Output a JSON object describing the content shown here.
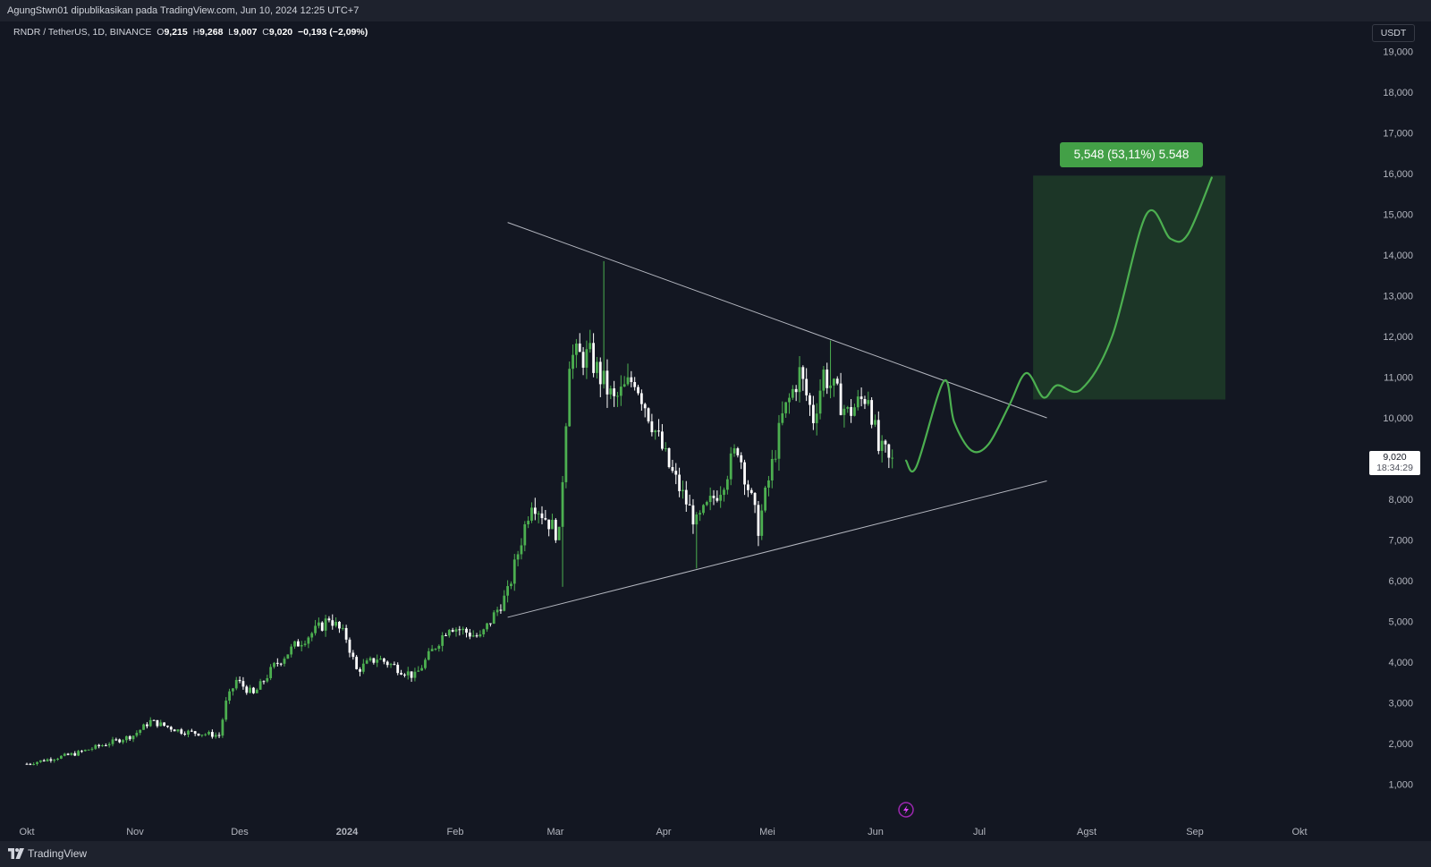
{
  "publication": "AgungStwn01 dipublikasikan pada TradingView.com, Jun 10, 2024 12:25 UTC+7",
  "legend": {
    "symbol": "RNDR / TetherUS, 1D, BINANCE",
    "o_label": "O",
    "o_value": "9,215",
    "h_label": "H",
    "h_value": "9,268",
    "l_label": "L",
    "l_value": "9,007",
    "c_label": "C",
    "c_value": "9,020",
    "change": "−0,193 (−2,09%)"
  },
  "currency": "USDT",
  "last_price": {
    "value": "9,020",
    "countdown": "18:34:29"
  },
  "measure": {
    "label": "5,548 (53,11%) 5.548"
  },
  "price_axis": [
    "19,000",
    "18,000",
    "17,000",
    "16,000",
    "15,000",
    "14,000",
    "13,000",
    "12,000",
    "11,000",
    "10,000",
    "8,000",
    "7,000",
    "6,000",
    "5,000",
    "4,000",
    "3,000",
    "2,000",
    "1,000"
  ],
  "time_axis": [
    {
      "label": "Okt",
      "bold": false
    },
    {
      "label": "Nov",
      "bold": false
    },
    {
      "label": "Des",
      "bold": false
    },
    {
      "label": "2024",
      "bold": true
    },
    {
      "label": "Feb",
      "bold": false
    },
    {
      "label": "Mar",
      "bold": false
    },
    {
      "label": "Apr",
      "bold": false
    },
    {
      "label": "Mei",
      "bold": false
    },
    {
      "label": "Jun",
      "bold": false
    },
    {
      "label": "Jul",
      "bold": false
    },
    {
      "label": "Agst",
      "bold": false
    },
    {
      "label": "Sep",
      "bold": false
    },
    {
      "label": "Okt",
      "bold": false
    }
  ],
  "brand": "TradingView",
  "icons": [
    "tradingview-logo-icon",
    "lightning-icon"
  ],
  "colors": {
    "background": "#131722",
    "up": "#4caf50",
    "down": "#ffffff",
    "projection": "#4caf50",
    "measure_fill": "#1e3a28",
    "trendline": "#d1d4dc"
  },
  "chart_data": {
    "type": "candlestick",
    "symbol": "RNDR / TetherUS",
    "interval": "1D",
    "exchange": "BINANCE",
    "ylim": [
      0,
      19500
    ],
    "y_ticks": [
      1000,
      2000,
      3000,
      4000,
      5000,
      6000,
      7000,
      8000,
      10000,
      11000,
      12000,
      13000,
      14000,
      15000,
      16000,
      17000,
      18000,
      19000
    ],
    "series": [
      {
        "name": "RNDR / TetherUS",
        "close_path": [
          [
            "2023-10-01",
            1.5
          ],
          [
            "2023-10-15",
            1.75
          ],
          [
            "2023-11-01",
            2.2
          ],
          [
            "2023-11-06",
            2.55
          ],
          [
            "2023-11-15",
            2.3
          ],
          [
            "2023-11-26",
            2.2
          ],
          [
            "2023-11-28",
            3.0
          ],
          [
            "2023-12-01",
            3.55
          ],
          [
            "2023-12-06",
            3.2
          ],
          [
            "2023-12-12",
            3.9
          ],
          [
            "2023-12-18",
            4.4
          ],
          [
            "2023-12-26",
            4.9
          ],
          [
            "2023-12-28",
            5.1
          ],
          [
            "2024-01-02",
            4.6
          ],
          [
            "2024-01-05",
            3.8
          ],
          [
            "2024-01-11",
            4.1
          ],
          [
            "2024-01-22",
            3.65
          ],
          [
            "2024-02-01",
            4.9
          ],
          [
            "2024-02-10",
            4.6
          ],
          [
            "2024-02-18",
            5.7
          ],
          [
            "2024-02-25",
            8.0
          ],
          [
            "2024-03-04",
            7.1
          ],
          [
            "2024-03-07",
            11.5
          ],
          [
            "2024-03-13",
            11.5
          ],
          [
            "2024-03-16",
            11.0
          ],
          [
            "2024-03-20",
            10.4
          ],
          [
            "2024-03-26",
            11.0
          ],
          [
            "2024-04-05",
            8.8
          ],
          [
            "2024-04-13",
            7.4
          ],
          [
            "2024-04-20",
            8.3
          ],
          [
            "2024-04-25",
            9.3
          ],
          [
            "2024-05-01",
            7.3
          ],
          [
            "2024-05-08",
            10.0
          ],
          [
            "2024-05-13",
            11.1
          ],
          [
            "2024-05-17",
            10.0
          ],
          [
            "2024-05-20",
            11.1
          ],
          [
            "2024-05-27",
            10.1
          ],
          [
            "2024-06-02",
            10.6
          ],
          [
            "2024-06-05",
            9.2
          ],
          [
            "2024-06-09",
            9.02
          ]
        ],
        "notable_highs": [
          [
            "2024-03-17",
            13.85
          ],
          [
            "2024-05-22",
            11.9
          ]
        ],
        "notable_lows": [
          [
            "2024-03-05",
            5.85
          ],
          [
            "2024-04-13",
            6.3
          ],
          [
            "2024-05-01",
            6.85
          ]
        ]
      },
      {
        "name": "projection",
        "kind": "drawn-path",
        "points": [
          [
            "2024-06-13",
            8.95
          ],
          [
            "2024-06-16",
            8.8
          ],
          [
            "2024-06-24",
            10.9
          ],
          [
            "2024-06-27",
            9.9
          ],
          [
            "2024-07-02",
            9.2
          ],
          [
            "2024-07-07",
            9.35
          ],
          [
            "2024-07-13",
            10.3
          ],
          [
            "2024-07-18",
            11.1
          ],
          [
            "2024-07-23",
            10.5
          ],
          [
            "2024-07-27",
            10.8
          ],
          [
            "2024-08-03",
            10.7
          ],
          [
            "2024-08-12",
            12.0
          ],
          [
            "2024-08-22",
            15.0
          ],
          [
            "2024-08-29",
            14.4
          ],
          [
            "2024-09-03",
            14.5
          ],
          [
            "2024-09-10",
            15.9
          ]
        ]
      }
    ],
    "trendlines": [
      {
        "name": "upper",
        "from": [
          "2024-02-18",
          14.8
        ],
        "to": [
          "2024-07-24",
          10.0
        ]
      },
      {
        "name": "lower",
        "from": [
          "2024-02-18",
          5.1
        ],
        "to": [
          "2024-07-24",
          8.45
        ]
      }
    ],
    "price_range_measure": {
      "from_price": 10.45,
      "to_price": 15.95,
      "from_date": "2024-07-20",
      "to_date": "2024-09-14",
      "change": 5.548,
      "change_pct": 53.11
    },
    "last_price": 9.02,
    "grid": false,
    "legend_placement": "top-left"
  }
}
